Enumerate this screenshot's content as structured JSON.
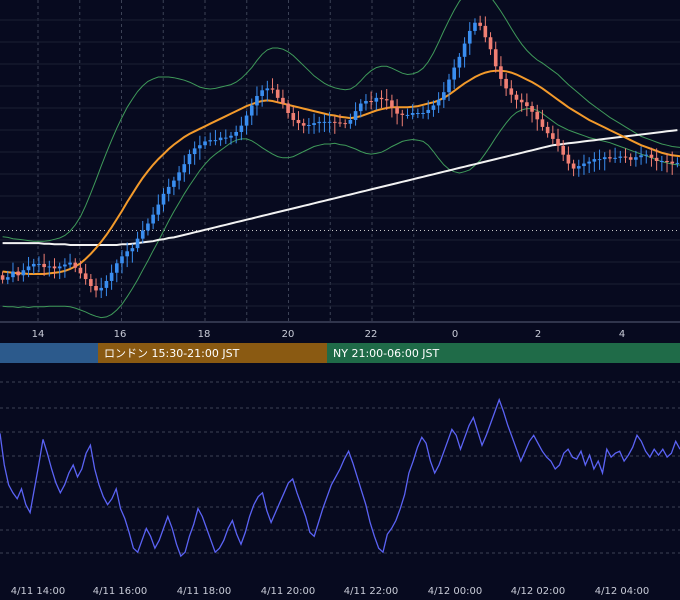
{
  "chart_data": [
    {
      "type": "candlestick",
      "overlays": [
        "bollinger-bands",
        "moving-average-orange",
        "moving-average-white"
      ],
      "x_ticks": [
        "14",
        "16",
        "18",
        "20",
        "22",
        "0",
        "2",
        "4"
      ],
      "price": {
        "open": [
          0.44,
          0.37,
          0.41,
          0.5,
          0.44,
          0.52,
          0.58,
          0.62,
          0.62,
          0.57,
          0.58,
          0.55,
          0.58,
          0.61,
          0.64,
          0.56,
          0.47,
          0.38,
          0.27,
          0.2,
          0.24,
          0.35,
          0.48,
          0.63,
          0.74,
          0.82,
          0.87,
          1.02,
          1.15,
          1.26,
          1.4,
          1.56,
          1.73,
          1.84,
          1.94,
          2.07,
          2.2,
          2.36,
          2.45,
          2.5,
          2.56,
          2.58,
          2.58,
          2.62,
          2.62,
          2.65,
          2.71,
          2.81,
          2.97,
          3.13,
          3.28,
          3.37,
          3.4,
          3.38,
          3.25,
          3.16,
          3.01,
          2.9,
          2.85,
          2.81,
          2.82,
          2.85,
          2.87,
          2.87,
          2.87,
          2.86,
          2.85,
          2.84,
          2.9,
          3.04,
          3.16,
          3.2,
          3.19,
          3.25,
          3.23,
          3.21,
          3.1,
          3.0,
          2.98,
          2.98,
          3.01,
          3.01,
          3.01,
          3.06,
          3.13,
          3.22,
          3.34,
          3.54,
          3.73,
          3.9,
          4.11,
          4.31,
          4.44,
          4.39,
          4.21,
          4.02,
          3.75,
          3.55,
          3.4,
          3.3,
          3.22,
          3.18,
          3.12,
          3.03,
          2.91,
          2.79,
          2.69,
          2.6,
          2.49,
          2.35,
          2.21,
          2.13,
          2.17,
          2.21,
          2.24,
          2.28,
          2.28,
          2.31,
          2.29,
          2.3,
          2.32,
          2.31,
          2.27,
          2.31,
          2.34,
          2.35,
          2.3,
          2.25,
          2.25,
          2.24,
          2.21
        ],
        "close": [
          0.37,
          0.41,
          0.5,
          0.44,
          0.52,
          0.58,
          0.62,
          0.62,
          0.57,
          0.58,
          0.55,
          0.58,
          0.61,
          0.64,
          0.56,
          0.47,
          0.38,
          0.27,
          0.2,
          0.24,
          0.35,
          0.48,
          0.63,
          0.74,
          0.82,
          0.87,
          1.02,
          1.15,
          1.26,
          1.4,
          1.56,
          1.73,
          1.84,
          1.94,
          2.07,
          2.2,
          2.36,
          2.45,
          2.5,
          2.56,
          2.58,
          2.58,
          2.62,
          2.62,
          2.65,
          2.71,
          2.81,
          2.97,
          3.13,
          3.28,
          3.37,
          3.4,
          3.38,
          3.25,
          3.16,
          3.01,
          2.9,
          2.85,
          2.81,
          2.82,
          2.85,
          2.87,
          2.87,
          2.87,
          2.86,
          2.85,
          2.84,
          2.9,
          3.04,
          3.16,
          3.2,
          3.19,
          3.25,
          3.23,
          3.21,
          3.1,
          3.0,
          2.98,
          2.98,
          3.01,
          3.01,
          3.01,
          3.06,
          3.13,
          3.22,
          3.34,
          3.54,
          3.73,
          3.9,
          4.11,
          4.31,
          4.44,
          4.39,
          4.21,
          4.02,
          3.75,
          3.55,
          3.4,
          3.3,
          3.22,
          3.18,
          3.12,
          3.03,
          2.91,
          2.79,
          2.69,
          2.6,
          2.49,
          2.35,
          2.21,
          2.13,
          2.17,
          2.21,
          2.24,
          2.28,
          2.28,
          2.31,
          2.29,
          2.3,
          2.32,
          2.31,
          2.27,
          2.31,
          2.34,
          2.35,
          2.3,
          2.25,
          2.25,
          2.24,
          2.21,
          2.22
        ],
        "ma_orange": [
          0.5,
          0.49,
          0.48,
          0.47,
          0.47,
          0.46,
          0.46,
          0.46,
          0.46,
          0.47,
          0.48,
          0.49,
          0.51,
          0.54,
          0.58,
          0.63,
          0.7,
          0.78,
          0.87,
          0.97,
          1.08,
          1.2,
          1.33,
          1.46,
          1.6,
          1.73,
          1.86,
          1.98,
          2.09,
          2.19,
          2.28,
          2.36,
          2.44,
          2.51,
          2.57,
          2.63,
          2.68,
          2.72,
          2.76,
          2.8,
          2.84,
          2.88,
          2.92,
          2.96,
          3.0,
          3.04,
          3.08,
          3.12,
          3.15,
          3.18,
          3.2,
          3.21,
          3.2,
          3.18,
          3.16,
          3.14,
          3.12,
          3.1,
          3.08,
          3.06,
          3.04,
          3.02,
          3.0,
          2.98,
          2.97,
          2.95,
          2.94,
          2.93,
          2.94,
          2.96,
          2.99,
          3.02,
          3.05,
          3.07,
          3.09,
          3.1,
          3.1,
          3.1,
          3.1,
          3.11,
          3.12,
          3.14,
          3.16,
          3.18,
          3.21,
          3.25,
          3.3,
          3.36,
          3.42,
          3.48,
          3.53,
          3.58,
          3.62,
          3.65,
          3.67,
          3.68,
          3.68,
          3.67,
          3.65,
          3.62,
          3.58,
          3.54,
          3.5,
          3.45,
          3.4,
          3.34,
          3.28,
          3.22,
          3.16,
          3.1,
          3.05,
          3.0,
          2.95,
          2.9,
          2.86,
          2.82,
          2.78,
          2.74,
          2.7,
          2.66,
          2.62,
          2.58,
          2.54,
          2.5,
          2.47,
          2.44,
          2.41,
          2.38,
          2.36,
          2.34,
          2.33,
          2.32
        ],
        "ma_white": [
          0.95,
          0.95,
          0.95,
          0.95,
          0.95,
          0.95,
          0.95,
          0.95,
          0.94,
          0.94,
          0.93,
          0.93,
          0.93,
          0.92,
          0.92,
          0.92,
          0.92,
          0.92,
          0.92,
          0.92,
          0.92,
          0.92,
          0.92,
          0.93,
          0.93,
          0.94,
          0.95,
          0.96,
          0.97,
          0.98,
          1.0,
          1.01,
          1.03,
          1.04,
          1.06,
          1.08,
          1.1,
          1.12,
          1.14,
          1.16,
          1.18,
          1.2,
          1.22,
          1.24,
          1.26,
          1.28,
          1.3,
          1.32,
          1.34,
          1.36,
          1.38,
          1.4,
          1.42,
          1.44,
          1.46,
          1.48,
          1.5,
          1.52,
          1.54,
          1.56,
          1.58,
          1.6,
          1.62,
          1.64,
          1.66,
          1.68,
          1.7,
          1.72,
          1.74,
          1.76,
          1.78,
          1.8,
          1.82,
          1.84,
          1.86,
          1.88,
          1.9,
          1.92,
          1.94,
          1.96,
          1.98,
          2.0,
          2.02,
          2.04,
          2.06,
          2.08,
          2.1,
          2.12,
          2.14,
          2.16,
          2.18,
          2.2,
          2.22,
          2.24,
          2.26,
          2.28,
          2.3,
          2.32,
          2.34,
          2.36,
          2.38,
          2.4,
          2.42,
          2.44,
          2.46,
          2.48,
          2.5,
          2.51,
          2.52,
          2.53,
          2.54,
          2.55,
          2.56,
          2.57,
          2.58,
          2.59,
          2.6,
          2.61,
          2.62,
          2.63,
          2.64,
          2.65,
          2.66,
          2.67,
          2.68,
          2.69,
          2.7,
          2.71,
          2.72,
          2.73,
          2.74
        ],
        "bb_upper_offset": [
          0.55,
          0.55,
          0.54,
          0.54,
          0.53,
          0.53,
          0.52,
          0.52,
          0.52,
          0.52,
          0.53,
          0.54,
          0.56,
          0.6,
          0.66,
          0.74,
          0.84,
          0.96,
          1.08,
          1.2,
          1.3,
          1.38,
          1.44,
          1.48,
          1.5,
          1.5,
          1.49,
          1.46,
          1.42,
          1.36,
          1.3,
          1.22,
          1.14,
          1.06,
          0.98,
          0.9,
          0.82,
          0.74,
          0.66,
          0.6,
          0.55,
          0.52,
          0.5,
          0.48,
          0.46,
          0.46,
          0.48,
          0.52,
          0.58,
          0.66,
          0.74,
          0.8,
          0.84,
          0.86,
          0.86,
          0.84,
          0.8,
          0.74,
          0.68,
          0.62,
          0.56,
          0.52,
          0.48,
          0.46,
          0.44,
          0.44,
          0.44,
          0.46,
          0.5,
          0.56,
          0.62,
          0.66,
          0.68,
          0.68,
          0.66,
          0.62,
          0.58,
          0.54,
          0.52,
          0.52,
          0.54,
          0.58,
          0.66,
          0.78,
          0.92,
          1.06,
          1.18,
          1.28,
          1.36,
          1.4,
          1.42,
          1.4,
          1.36,
          1.28,
          1.18,
          1.06,
          0.94,
          0.82,
          0.7,
          0.6,
          0.52,
          0.46,
          0.42,
          0.4,
          0.4,
          0.4,
          0.4,
          0.4,
          0.38,
          0.36,
          0.34,
          0.32,
          0.3,
          0.28,
          0.26,
          0.24,
          0.22,
          0.2,
          0.19,
          0.18,
          0.17,
          0.16,
          0.15,
          0.14,
          0.14,
          0.14,
          0.14,
          0.14,
          0.14,
          0.14,
          0.14,
          0.14
        ],
        "y_range": [
          -0.3,
          4.8
        ],
        "grid": true,
        "dotted_reference_level": 1.15
      },
      "sessions": [
        {
          "label": "",
          "color": "#2c5a8c"
        },
        {
          "label": "ロンドン 15:30-21:00 JST",
          "color": "#8a5a12"
        },
        {
          "label": "NY 21:00-06:00 JST",
          "color": "#1f6b48"
        }
      ]
    },
    {
      "type": "line",
      "x_ticks": [
        "4/11 14:00",
        "4/11 16:00",
        "4/11 18:00",
        "4/11 20:00",
        "4/11 22:00",
        "4/12 00:00",
        "4/12 02:00",
        "4/12 04:00"
      ],
      "values": [
        488,
        472,
        462,
        458,
        455,
        460,
        452,
        448,
        460,
        472,
        485,
        478,
        470,
        463,
        458,
        462,
        468,
        472,
        466,
        470,
        478,
        482,
        470,
        462,
        456,
        452,
        455,
        460,
        450,
        445,
        438,
        430,
        428,
        434,
        440,
        436,
        430,
        434,
        440,
        446,
        440,
        432,
        426,
        428,
        436,
        442,
        450,
        446,
        440,
        434,
        428,
        430,
        434,
        440,
        444,
        437,
        432,
        438,
        446,
        452,
        456,
        458,
        449,
        443,
        448,
        453,
        458,
        463,
        465,
        458,
        452,
        446,
        438,
        436,
        443,
        450,
        456,
        462,
        466,
        470,
        475,
        479,
        473,
        466,
        459,
        452,
        443,
        436,
        430,
        428,
        437,
        440,
        444,
        450,
        457,
        468,
        474,
        481,
        486,
        483,
        474,
        468,
        472,
        478,
        484,
        490,
        487,
        480,
        486,
        492,
        496,
        489,
        482,
        487,
        493,
        499,
        505,
        499,
        492,
        486,
        480,
        474,
        479,
        484,
        487,
        483,
        479,
        476,
        474,
        470,
        472,
        478,
        480,
        476,
        475,
        479,
        472,
        477,
        470,
        474,
        468,
        480,
        476,
        478,
        479,
        474,
        477,
        481,
        487,
        484,
        479,
        476,
        480,
        477,
        480,
        476,
        478,
        484,
        480
      ],
      "y_range": [
        420,
        520
      ],
      "grid": true,
      "color": "#5b63f5"
    }
  ]
}
